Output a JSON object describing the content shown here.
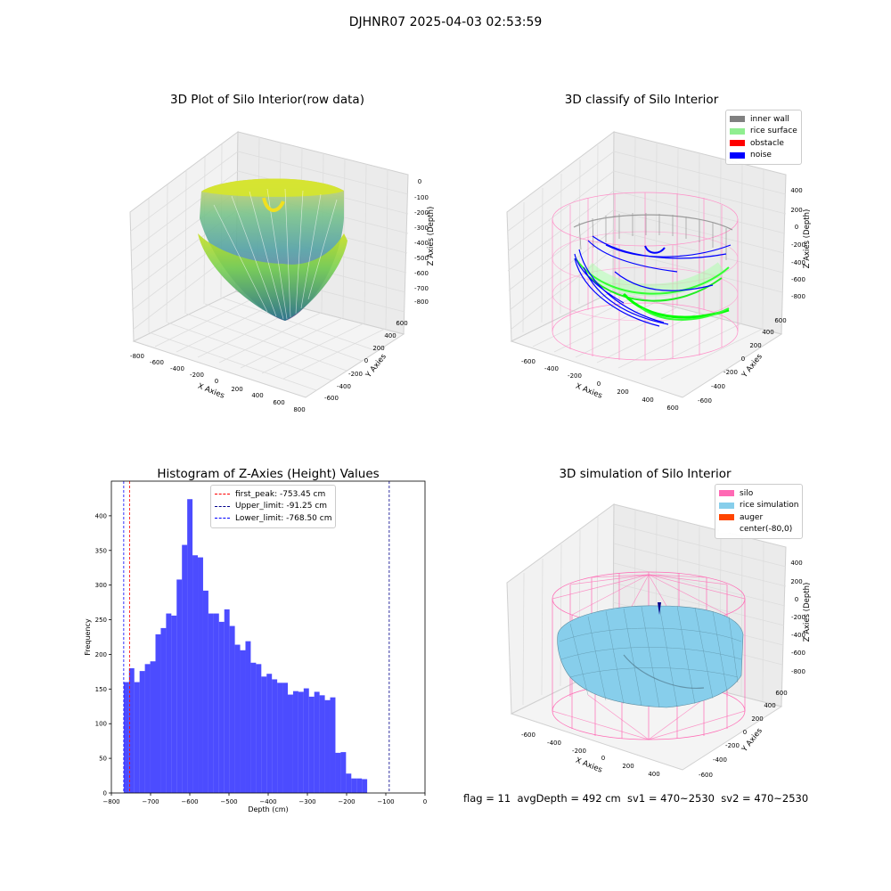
{
  "suptitle": "DJHNR07 2025-04-03 02:53:59",
  "footer": "flag = 11  avgDepth = 492 cm  sv1 = 470~2530  sv2 = 470~2530",
  "chart_data": [
    {
      "type": "surface3d",
      "title": "3D Plot of Silo Interior(row data)",
      "xlabel": "X Axies",
      "ylabel": "Y Axies",
      "zlabel": "Z Axies (Depth)",
      "x_ticks": [
        "-800",
        "-600",
        "-400",
        "-200",
        "0",
        "200",
        "400",
        "600",
        "800"
      ],
      "y_ticks": [
        "-600",
        "-400",
        "-200",
        "0",
        "200",
        "400",
        "600"
      ],
      "z_ticks": [
        "0",
        "-100",
        "-200",
        "-300",
        "-400",
        "-500",
        "-600",
        "-700",
        "-800"
      ],
      "colormap": "viridis",
      "grid": true
    },
    {
      "type": "scatter3d",
      "title": "3D classify of Silo Interior",
      "xlabel": "X Axies",
      "ylabel": "Y Axies",
      "zlabel": "Z Axies (Depth)",
      "x_ticks": [
        "-600",
        "-400",
        "-200",
        "0",
        "200",
        "400",
        "600"
      ],
      "y_ticks": [
        "-600",
        "-400",
        "-200",
        "0",
        "200",
        "400",
        "600"
      ],
      "z_ticks": [
        "400",
        "200",
        "0",
        "-200",
        "-400",
        "-600",
        "-800"
      ],
      "legend": [
        {
          "label": "inner wall",
          "color": "#808080"
        },
        {
          "label": "rice surface",
          "color": "#90ee90"
        },
        {
          "label": "obstacle",
          "color": "#ff0000"
        },
        {
          "label": "noise",
          "color": "#0000ff"
        }
      ],
      "legend_position": "top-right",
      "grid": true
    },
    {
      "type": "histogram",
      "title": "Histogram of Z-Axies (Height) Values",
      "xlabel": "Depth (cm)",
      "ylabel": "Frequency",
      "xlim": [
        -800,
        0
      ],
      "ylim": [
        0,
        450
      ],
      "x_ticks": [
        -800,
        -700,
        -600,
        -500,
        -400,
        -300,
        -200,
        -100,
        0
      ],
      "y_ticks": [
        0,
        50,
        100,
        150,
        200,
        250,
        300,
        350,
        400
      ],
      "bin_start": -768.5,
      "bin_width": 13.5,
      "values": [
        160,
        180,
        160,
        176,
        186,
        190,
        229,
        238,
        259,
        256,
        308,
        358,
        424,
        343,
        340,
        292,
        259,
        259,
        247,
        265,
        241,
        214,
        206,
        219,
        188,
        186,
        168,
        172,
        164,
        159,
        159,
        142,
        147,
        146,
        151,
        139,
        146,
        141,
        134,
        138,
        58,
        59,
        28,
        21,
        21,
        20
      ],
      "bar_color": "#0000ff",
      "vlines": [
        {
          "label": "first_peak: -753.45 cm",
          "x": -753.45,
          "color": "#ff0000"
        },
        {
          "label": "Upper_limit: -91.25 cm",
          "x": -91.25,
          "color": "#00008b"
        },
        {
          "label": "Lower_limit: -768.50 cm",
          "x": -768.5,
          "color": "#0000ff"
        }
      ],
      "legend_position": "top-center"
    },
    {
      "type": "surface3d",
      "title": "3D simulation of Silo Interior",
      "xlabel": "X Axies",
      "ylabel": "Y Axies",
      "zlabel": "Z Axies (Depth)",
      "x_ticks": [
        "-600",
        "-400",
        "-200",
        "0",
        "200",
        "400"
      ],
      "y_ticks": [
        "-600",
        "-400",
        "-200",
        "0",
        "200",
        "400",
        "600"
      ],
      "z_ticks": [
        "400",
        "200",
        "0",
        "-200",
        "-400",
        "-600",
        "-800"
      ],
      "legend": [
        {
          "label": "silo",
          "color": "#ff69b4"
        },
        {
          "label": "rice simulation",
          "color": "#87ceeb"
        },
        {
          "label": "auger",
          "color": "#ff4500"
        },
        {
          "label": "center(-80,0)",
          "color": "#ffffff"
        }
      ],
      "legend_position": "top-right",
      "grid": true
    }
  ]
}
